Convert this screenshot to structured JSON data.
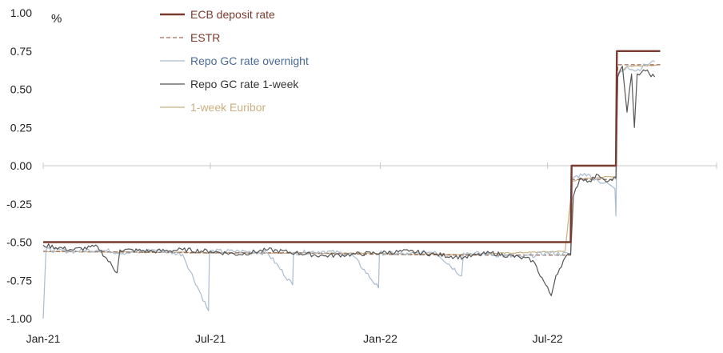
{
  "chart_data": {
    "type": "line",
    "title": "",
    "xlabel": "",
    "ylabel": "%",
    "ylim": [
      -1.0,
      1.0
    ],
    "yticks": [
      "1.00",
      "0.75",
      "0.50",
      "0.25",
      "0.00",
      "-0.25",
      "-0.50",
      "-0.75",
      "-1.00"
    ],
    "xticks": [
      "Jan-21",
      "Jul-21",
      "Jan-22",
      "Jul-22"
    ],
    "xlim": [
      "2021-01-01",
      "2022-12-31"
    ],
    "legend_position": "top-center",
    "grid": false,
    "series": [
      {
        "name": "ECB deposit rate",
        "color": "#7a3b2e",
        "style": "solid-thick",
        "points": [
          [
            "2021-01-01",
            -0.5
          ],
          [
            "2022-07-26",
            -0.5
          ],
          [
            "2022-07-27",
            0.0
          ],
          [
            "2022-09-13",
            0.0
          ],
          [
            "2022-09-14",
            0.75
          ],
          [
            "2022-10-31",
            0.75
          ]
        ]
      },
      {
        "name": "ESTR",
        "color": "#9a6a5a",
        "style": "dashed",
        "points": [
          [
            "2021-01-01",
            -0.56
          ],
          [
            "2021-04-01",
            -0.565
          ],
          [
            "2021-07-01",
            -0.57
          ],
          [
            "2021-10-01",
            -0.57
          ],
          [
            "2022-01-01",
            -0.58
          ],
          [
            "2022-04-01",
            -0.585
          ],
          [
            "2022-07-26",
            -0.585
          ],
          [
            "2022-07-28",
            -0.09
          ],
          [
            "2022-09-13",
            -0.09
          ],
          [
            "2022-09-15",
            0.66
          ],
          [
            "2022-10-31",
            0.66
          ]
        ]
      },
      {
        "name": "Repo GC rate overnight",
        "color": "#a9bcd0",
        "style": "solid",
        "points": [
          [
            "2021-01-01",
            -1.0
          ],
          [
            "2021-01-04",
            -0.55
          ],
          [
            "2021-02-01",
            -0.56
          ],
          [
            "2021-03-01",
            -0.55
          ],
          [
            "2021-04-01",
            -0.57
          ],
          [
            "2021-05-01",
            -0.55
          ],
          [
            "2021-06-01",
            -0.58
          ],
          [
            "2021-06-29",
            -0.95
          ],
          [
            "2021-06-30",
            -0.56
          ],
          [
            "2021-08-01",
            -0.56
          ],
          [
            "2021-09-01",
            -0.57
          ],
          [
            "2021-09-28",
            -0.78
          ],
          [
            "2021-09-29",
            -0.57
          ],
          [
            "2021-11-01",
            -0.56
          ],
          [
            "2021-12-01",
            -0.58
          ],
          [
            "2021-12-30",
            -0.8
          ],
          [
            "2021-12-31",
            -0.57
          ],
          [
            "2022-02-01",
            -0.58
          ],
          [
            "2022-03-01",
            -0.56
          ],
          [
            "2022-03-30",
            -0.72
          ],
          [
            "2022-04-01",
            -0.57
          ],
          [
            "2022-05-01",
            -0.58
          ],
          [
            "2022-06-01",
            -0.6
          ],
          [
            "2022-07-01",
            -0.57
          ],
          [
            "2022-07-26",
            -0.58
          ],
          [
            "2022-07-28",
            -0.08
          ],
          [
            "2022-08-10",
            -0.05
          ],
          [
            "2022-08-25",
            -0.1
          ],
          [
            "2022-09-05",
            -0.12
          ],
          [
            "2022-09-12",
            -0.15
          ],
          [
            "2022-09-13",
            -0.33
          ],
          [
            "2022-09-15",
            0.6
          ],
          [
            "2022-09-25",
            0.65
          ],
          [
            "2022-10-05",
            0.62
          ],
          [
            "2022-10-15",
            0.66
          ],
          [
            "2022-10-25",
            0.68
          ]
        ]
      },
      {
        "name": "Repo GC rate 1-week",
        "color": "#555555",
        "style": "solid",
        "points": [
          [
            "2021-01-01",
            -0.52
          ],
          [
            "2021-02-01",
            -0.55
          ],
          [
            "2021-03-01",
            -0.53
          ],
          [
            "2021-03-22",
            -0.7
          ],
          [
            "2021-03-25",
            -0.55
          ],
          [
            "2021-05-01",
            -0.56
          ],
          [
            "2021-06-01",
            -0.55
          ],
          [
            "2021-07-01",
            -0.56
          ],
          [
            "2021-08-01",
            -0.58
          ],
          [
            "2021-09-01",
            -0.55
          ],
          [
            "2021-10-01",
            -0.57
          ],
          [
            "2021-11-01",
            -0.59
          ],
          [
            "2021-12-01",
            -0.58
          ],
          [
            "2022-01-01",
            -0.57
          ],
          [
            "2022-02-01",
            -0.56
          ],
          [
            "2022-03-01",
            -0.58
          ],
          [
            "2022-04-01",
            -0.6
          ],
          [
            "2022-05-01",
            -0.57
          ],
          [
            "2022-06-01",
            -0.6
          ],
          [
            "2022-06-15",
            -0.62
          ],
          [
            "2022-07-05",
            -0.85
          ],
          [
            "2022-07-10",
            -0.72
          ],
          [
            "2022-07-20",
            -0.6
          ],
          [
            "2022-07-26",
            -0.58
          ],
          [
            "2022-07-29",
            -0.2
          ],
          [
            "2022-08-05",
            -0.08
          ],
          [
            "2022-08-15",
            -0.1
          ],
          [
            "2022-08-25",
            -0.06
          ],
          [
            "2022-09-05",
            -0.1
          ],
          [
            "2022-09-13",
            -0.08
          ],
          [
            "2022-09-15",
            0.58
          ],
          [
            "2022-09-20",
            0.65
          ],
          [
            "2022-09-25",
            0.35
          ],
          [
            "2022-09-30",
            0.6
          ],
          [
            "2022-10-03",
            0.25
          ],
          [
            "2022-10-06",
            0.6
          ],
          [
            "2022-10-15",
            0.62
          ],
          [
            "2022-10-25",
            0.58
          ]
        ]
      },
      {
        "name": "1-week Euribor",
        "color": "#c9b080",
        "style": "solid",
        "points": [
          [
            "2021-01-01",
            -0.56
          ],
          [
            "2021-04-01",
            -0.565
          ],
          [
            "2021-07-01",
            -0.57
          ],
          [
            "2021-10-01",
            -0.57
          ],
          [
            "2022-01-01",
            -0.575
          ],
          [
            "2022-04-01",
            -0.58
          ],
          [
            "2022-07-20",
            -0.56
          ],
          [
            "2022-07-28",
            -0.1
          ],
          [
            "2022-08-15",
            -0.08
          ],
          [
            "2022-09-13",
            -0.07
          ],
          [
            "2022-09-15",
            0.6
          ],
          [
            "2022-09-25",
            0.65
          ],
          [
            "2022-10-31",
            0.66
          ]
        ]
      }
    ]
  }
}
